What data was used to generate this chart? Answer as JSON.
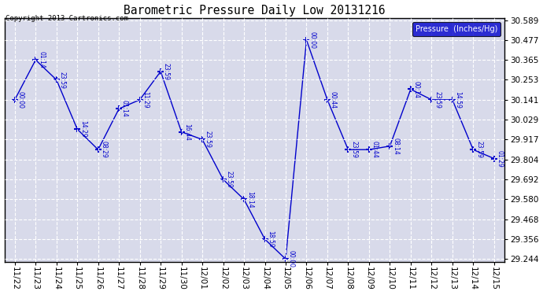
{
  "title": "Barometric Pressure Daily Low 20131216",
  "copyright": "Copyright 2013 Cartronics.com",
  "legend_label": "Pressure  (Inches/Hg)",
  "bg_color": "#ffffff",
  "plot_bg": "#d8daea",
  "line_color": "#0000cc",
  "grid_color": "#ffffff",
  "ytick_vals": [
    29.244,
    29.356,
    29.468,
    29.58,
    29.692,
    29.804,
    29.917,
    30.029,
    30.141,
    30.253,
    30.365,
    30.477,
    30.589
  ],
  "x_dates": [
    "11/22",
    "11/23",
    "11/24",
    "11/25",
    "11/26",
    "11/27",
    "11/28",
    "11/29",
    "11/30",
    "12/01",
    "12/02",
    "12/03",
    "12/04",
    "12/05",
    "12/06",
    "12/07",
    "12/08",
    "12/09",
    "12/10",
    "12/11",
    "12/12",
    "12/13",
    "12/14",
    "12/15"
  ],
  "px": [
    0,
    1,
    2,
    3,
    4,
    5,
    6,
    7,
    8,
    9,
    10,
    11,
    12,
    13,
    14,
    15,
    16,
    17,
    18,
    19,
    20,
    21,
    22,
    23
  ],
  "py": [
    30.141,
    30.365,
    30.253,
    29.975,
    29.86,
    30.09,
    30.141,
    30.3,
    29.96,
    29.917,
    29.692,
    29.58,
    29.356,
    29.244,
    30.477,
    30.141,
    29.86,
    29.86,
    29.88,
    30.2,
    30.141,
    30.141,
    29.86,
    29.81
  ],
  "pt": [
    "00:00",
    "01:14",
    "23:59",
    "14:29",
    "08:29",
    "01:14",
    "11:29",
    "23:59",
    "16:44",
    "23:59",
    "23:59",
    "18:14",
    "18:59",
    "00:00",
    "00:00",
    "00:44",
    "23:59",
    "01:44",
    "08:14",
    "00:14",
    "23:59",
    "14:59",
    "23:59",
    "01:29"
  ]
}
